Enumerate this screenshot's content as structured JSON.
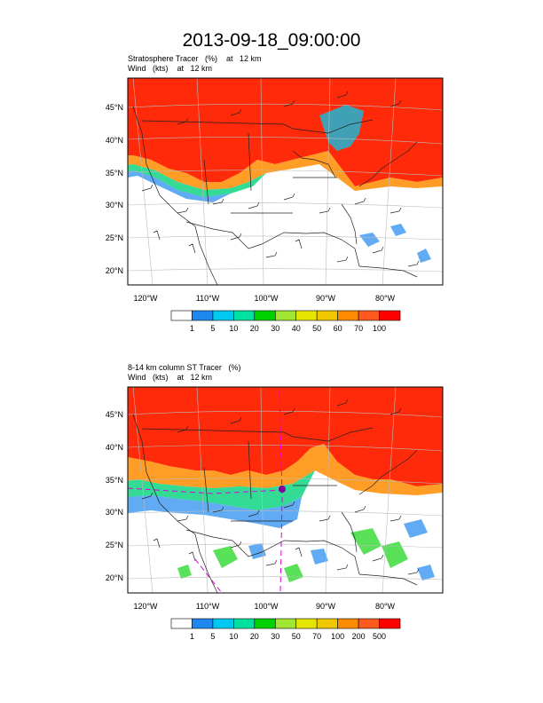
{
  "page_title": "2013-09-18_09:00:00",
  "panels": [
    {
      "subtitle_line1": "Stratosphere Tracer   (%)    at   12 km",
      "subtitle_line2": "Wind   (kts)    at   12 km",
      "lat_labels": [
        "45°N",
        "40°N",
        "35°N",
        "30°N",
        "25°N",
        "20°N"
      ],
      "lon_labels": [
        "120°W",
        "110°W",
        "100°W",
        "90°W",
        "80°W"
      ],
      "colorbar_labels": [
        "1",
        "5",
        "10",
        "20",
        "30",
        "40",
        "50",
        "60",
        "70",
        "100"
      ]
    },
    {
      "subtitle_line1": "8-14 km column ST Tracer   (%)",
      "subtitle_line2": "Wind   (kts)    at   12 km",
      "lat_labels": [
        "45°N",
        "40°N",
        "35°N",
        "30°N",
        "25°N",
        "20°N"
      ],
      "lon_labels": [
        "120°W",
        "110°W",
        "100°W",
        "90°W",
        "80°W"
      ],
      "colorbar_labels": [
        "1",
        "5",
        "10",
        "20",
        "30",
        "50",
        "70",
        "100",
        "200",
        "500"
      ]
    }
  ],
  "colorbar_colors": [
    "#ffffff",
    "#1e88f0",
    "#00c8f0",
    "#00e0a0",
    "#00d200",
    "#a0e632",
    "#e6e600",
    "#f0c800",
    "#ff8c00",
    "#ff5a1e",
    "#ff0000"
  ]
}
